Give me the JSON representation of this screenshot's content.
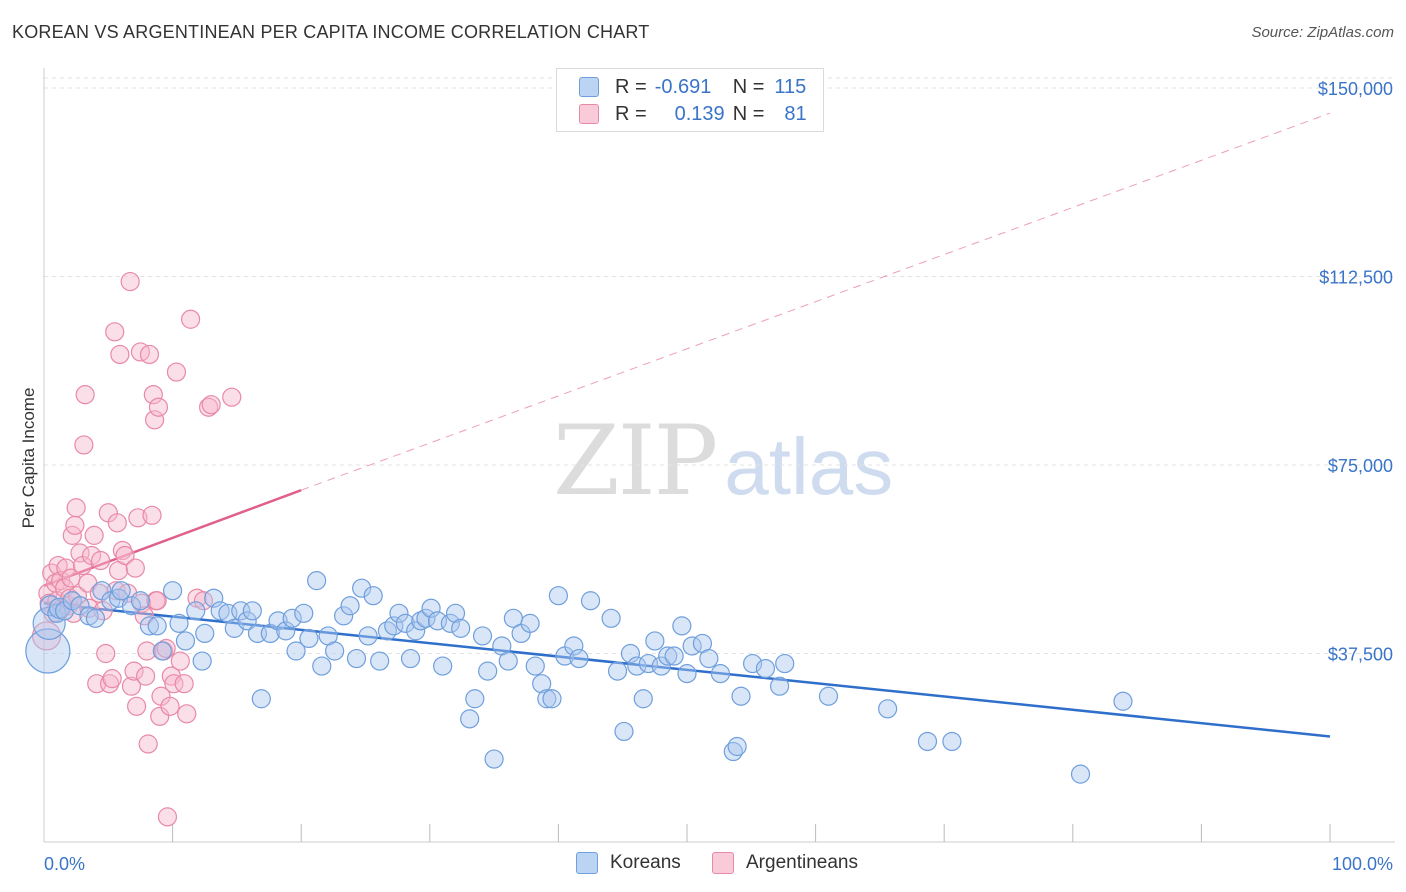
{
  "header": {
    "title": "KOREAN VS ARGENTINEAN PER CAPITA INCOME CORRELATION CHART",
    "source": "Source: ZipAtlas.com"
  },
  "watermark": {
    "zip": "ZIP",
    "atlas": "atlas"
  },
  "legend": {
    "rows": [
      {
        "r_label": "R =",
        "r_value": "-0.691",
        "n_label": "N =",
        "n_value": "115"
      },
      {
        "r_label": "R =",
        "r_value": "0.139",
        "n_label": "N =",
        "n_value": "81"
      }
    ]
  },
  "colors": {
    "korean_fill": "#aac8ef",
    "korean_stroke": "#6f9fdc",
    "korean_line": "#2f6fcc",
    "argentinean_fill": "#f6b8cb",
    "argentinean_stroke": "#e889a7",
    "argentinean_line": "#e0608a",
    "grid": "#e3e3e3",
    "tick_text": "#3a74c8"
  },
  "chart_data": {
    "type": "scatter",
    "title": "KOREAN VS ARGENTINEAN PER CAPITA INCOME CORRELATION CHART",
    "xlabel": "",
    "ylabel": "Per Capita Income",
    "xlim": [
      0,
      100
    ],
    "ylim": [
      0,
      152000
    ],
    "x_tick_labels": [
      "0.0%",
      "100.0%"
    ],
    "y_ticks": [
      37500,
      75000,
      112500,
      150000
    ],
    "y_tick_labels": [
      "$37,500",
      "$75,000",
      "$112,500",
      "$150,000"
    ],
    "grid": true,
    "legend_position": "top-center",
    "series": [
      {
        "name": "Koreans",
        "r": -0.691,
        "n": 115,
        "trend": {
          "x0": 0,
          "y0": 47500,
          "x1": 100,
          "y1": 21000,
          "dashed_extension": false
        },
        "points": [
          [
            0.3,
            38000,
            22
          ],
          [
            0.4,
            43500,
            16
          ],
          [
            0.5,
            47000,
            10
          ],
          [
            1.0,
            45500,
            9
          ],
          [
            1.2,
            46500,
            10
          ],
          [
            1.6,
            46000,
            9
          ],
          [
            2.2,
            48000,
            9
          ],
          [
            2.8,
            47000,
            9
          ],
          [
            3.5,
            45000,
            9
          ],
          [
            4.0,
            44500,
            9
          ],
          [
            4.5,
            50000,
            9
          ],
          [
            5.2,
            48000,
            9
          ],
          [
            5.8,
            48500,
            9
          ],
          [
            6.0,
            50000,
            9
          ],
          [
            6.8,
            47000,
            9
          ],
          [
            7.5,
            48000,
            9
          ],
          [
            8.2,
            43000,
            9
          ],
          [
            8.8,
            43000,
            9
          ],
          [
            9.2,
            38000,
            9
          ],
          [
            10.0,
            50000,
            9
          ],
          [
            10.5,
            43500,
            9
          ],
          [
            11.0,
            40000,
            9
          ],
          [
            11.8,
            46000,
            9
          ],
          [
            12.3,
            36000,
            9
          ],
          [
            12.5,
            41500,
            9
          ],
          [
            13.2,
            48500,
            9
          ],
          [
            13.7,
            46000,
            9
          ],
          [
            14.3,
            45500,
            9
          ],
          [
            14.8,
            42500,
            9
          ],
          [
            15.3,
            46000,
            9
          ],
          [
            15.8,
            44000,
            9
          ],
          [
            16.2,
            46000,
            9
          ],
          [
            16.6,
            41500,
            9
          ],
          [
            16.9,
            28500,
            9
          ],
          [
            17.6,
            41500,
            9
          ],
          [
            18.2,
            44000,
            9
          ],
          [
            18.8,
            42000,
            9
          ],
          [
            19.3,
            44500,
            9
          ],
          [
            19.6,
            38000,
            9
          ],
          [
            20.2,
            45500,
            9
          ],
          [
            20.6,
            40500,
            9
          ],
          [
            21.2,
            52000,
            9
          ],
          [
            21.6,
            35000,
            9
          ],
          [
            22.1,
            41000,
            9
          ],
          [
            22.6,
            38000,
            9
          ],
          [
            23.3,
            45000,
            9
          ],
          [
            23.8,
            47000,
            9
          ],
          [
            24.3,
            36500,
            9
          ],
          [
            24.7,
            50500,
            9
          ],
          [
            25.2,
            41000,
            9
          ],
          [
            25.6,
            49000,
            9
          ],
          [
            26.1,
            36000,
            9
          ],
          [
            26.7,
            42000,
            9
          ],
          [
            27.2,
            43000,
            9
          ],
          [
            27.6,
            45500,
            9
          ],
          [
            28.1,
            43500,
            9
          ],
          [
            28.5,
            36500,
            9
          ],
          [
            28.9,
            42000,
            9
          ],
          [
            29.3,
            44000,
            9
          ],
          [
            29.7,
            44500,
            9
          ],
          [
            30.1,
            46500,
            9
          ],
          [
            30.6,
            44000,
            9
          ],
          [
            31.0,
            35000,
            9
          ],
          [
            31.6,
            43500,
            9
          ],
          [
            32.0,
            45500,
            9
          ],
          [
            32.4,
            42500,
            9
          ],
          [
            33.1,
            24500,
            9
          ],
          [
            33.5,
            28500,
            9
          ],
          [
            34.1,
            41000,
            9
          ],
          [
            34.5,
            34000,
            9
          ],
          [
            35.0,
            16500,
            9
          ],
          [
            35.6,
            39000,
            9
          ],
          [
            36.1,
            36000,
            9
          ],
          [
            36.5,
            44500,
            9
          ],
          [
            37.1,
            41500,
            9
          ],
          [
            37.8,
            43500,
            9
          ],
          [
            38.2,
            35000,
            9
          ],
          [
            38.7,
            31500,
            9
          ],
          [
            39.1,
            28500,
            9
          ],
          [
            39.5,
            28500,
            9
          ],
          [
            40.0,
            49000,
            9
          ],
          [
            40.5,
            37000,
            9
          ],
          [
            41.2,
            39000,
            9
          ],
          [
            41.6,
            36500,
            9
          ],
          [
            42.5,
            48000,
            9
          ],
          [
            44.1,
            44500,
            9
          ],
          [
            44.6,
            34000,
            9
          ],
          [
            45.1,
            22000,
            9
          ],
          [
            45.6,
            37500,
            9
          ],
          [
            46.1,
            35000,
            9
          ],
          [
            46.6,
            28500,
            9
          ],
          [
            47.0,
            35500,
            9
          ],
          [
            47.5,
            40000,
            9
          ],
          [
            48.0,
            35000,
            9
          ],
          [
            48.5,
            37000,
            9
          ],
          [
            49.0,
            37000,
            9
          ],
          [
            49.6,
            43000,
            9
          ],
          [
            50.0,
            33500,
            9
          ],
          [
            50.4,
            39000,
            9
          ],
          [
            51.2,
            39500,
            9
          ],
          [
            51.7,
            36500,
            9
          ],
          [
            52.6,
            33500,
            9
          ],
          [
            53.6,
            18000,
            9
          ],
          [
            53.9,
            19000,
            9
          ],
          [
            54.2,
            29000,
            9
          ],
          [
            55.1,
            35500,
            9
          ],
          [
            56.1,
            34500,
            9
          ],
          [
            57.2,
            31000,
            9
          ],
          [
            57.6,
            35500,
            9
          ],
          [
            61.0,
            29000,
            9
          ],
          [
            65.6,
            26500,
            9
          ],
          [
            68.7,
            20000,
            9
          ],
          [
            70.6,
            20000,
            9
          ],
          [
            80.6,
            13500,
            9
          ],
          [
            83.9,
            28000,
            9
          ]
        ]
      },
      {
        "name": "Argentineans",
        "r": 0.139,
        "n": 81,
        "trend": {
          "x0": 0,
          "y0": 51000,
          "x1": 20,
          "y1": 70000,
          "dash_to_x": 100,
          "dash_to_y": 145000
        },
        "points": [
          [
            0.2,
            41000,
            14
          ],
          [
            0.3,
            49500,
            9
          ],
          [
            0.4,
            47500,
            9
          ],
          [
            0.6,
            53500,
            9
          ],
          [
            0.7,
            45500,
            9
          ],
          [
            0.9,
            51500,
            9
          ],
          [
            1.0,
            48000,
            9
          ],
          [
            1.1,
            55000,
            9
          ],
          [
            1.3,
            52000,
            9
          ],
          [
            1.4,
            46500,
            9
          ],
          [
            1.6,
            50500,
            9
          ],
          [
            1.7,
            54500,
            9
          ],
          [
            1.9,
            47000,
            9
          ],
          [
            2.0,
            48500,
            9
          ],
          [
            2.1,
            52500,
            9
          ],
          [
            2.2,
            61000,
            9
          ],
          [
            2.3,
            45500,
            9
          ],
          [
            2.4,
            63000,
            9
          ],
          [
            2.5,
            66500,
            9
          ],
          [
            2.6,
            49000,
            9
          ],
          [
            2.8,
            57500,
            9
          ],
          [
            3.0,
            55000,
            9
          ],
          [
            3.1,
            79000,
            9
          ],
          [
            3.2,
            89000,
            9
          ],
          [
            3.4,
            51500,
            9
          ],
          [
            3.5,
            46500,
            9
          ],
          [
            3.7,
            57000,
            9
          ],
          [
            3.9,
            61000,
            9
          ],
          [
            4.1,
            31500,
            9
          ],
          [
            4.3,
            49500,
            9
          ],
          [
            4.4,
            56000,
            9
          ],
          [
            4.6,
            46000,
            9
          ],
          [
            4.8,
            37500,
            9
          ],
          [
            5.0,
            65500,
            9
          ],
          [
            5.1,
            31500,
            9
          ],
          [
            5.3,
            32500,
            9
          ],
          [
            5.5,
            101500,
            9
          ],
          [
            5.6,
            50000,
            9
          ],
          [
            5.7,
            63500,
            9
          ],
          [
            5.8,
            54000,
            9
          ],
          [
            5.9,
            97000,
            9
          ],
          [
            6.1,
            58000,
            9
          ],
          [
            6.3,
            57000,
            9
          ],
          [
            6.5,
            49500,
            9
          ],
          [
            6.7,
            111500,
            9
          ],
          [
            6.8,
            31000,
            9
          ],
          [
            7.0,
            34000,
            9
          ],
          [
            7.1,
            54500,
            9
          ],
          [
            7.2,
            27000,
            9
          ],
          [
            7.3,
            64500,
            9
          ],
          [
            7.5,
            97500,
            9
          ],
          [
            7.6,
            47500,
            9
          ],
          [
            7.8,
            45000,
            9
          ],
          [
            7.9,
            33000,
            9
          ],
          [
            8.0,
            38000,
            9
          ],
          [
            8.1,
            19500,
            9
          ],
          [
            8.2,
            97000,
            9
          ],
          [
            8.4,
            65000,
            9
          ],
          [
            8.5,
            89000,
            9
          ],
          [
            8.6,
            84000,
            9
          ],
          [
            8.7,
            48000,
            9
          ],
          [
            8.8,
            48000,
            9
          ],
          [
            9.0,
            25000,
            9
          ],
          [
            9.1,
            29000,
            9
          ],
          [
            9.3,
            38000,
            9
          ],
          [
            9.5,
            38500,
            9
          ],
          [
            9.6,
            5000,
            9
          ],
          [
            9.8,
            27000,
            9
          ],
          [
            9.9,
            33000,
            9
          ],
          [
            10.1,
            31500,
            9
          ],
          [
            10.3,
            93500,
            9
          ],
          [
            10.6,
            36000,
            9
          ],
          [
            10.9,
            31500,
            9
          ],
          [
            11.1,
            25500,
            9
          ],
          [
            11.4,
            104000,
            9
          ],
          [
            11.9,
            48500,
            9
          ],
          [
            12.4,
            48000,
            9
          ],
          [
            12.8,
            86500,
            9
          ],
          [
            13.0,
            87000,
            9
          ],
          [
            14.6,
            88500,
            9
          ],
          [
            8.9,
            86500,
            9
          ]
        ]
      }
    ]
  }
}
